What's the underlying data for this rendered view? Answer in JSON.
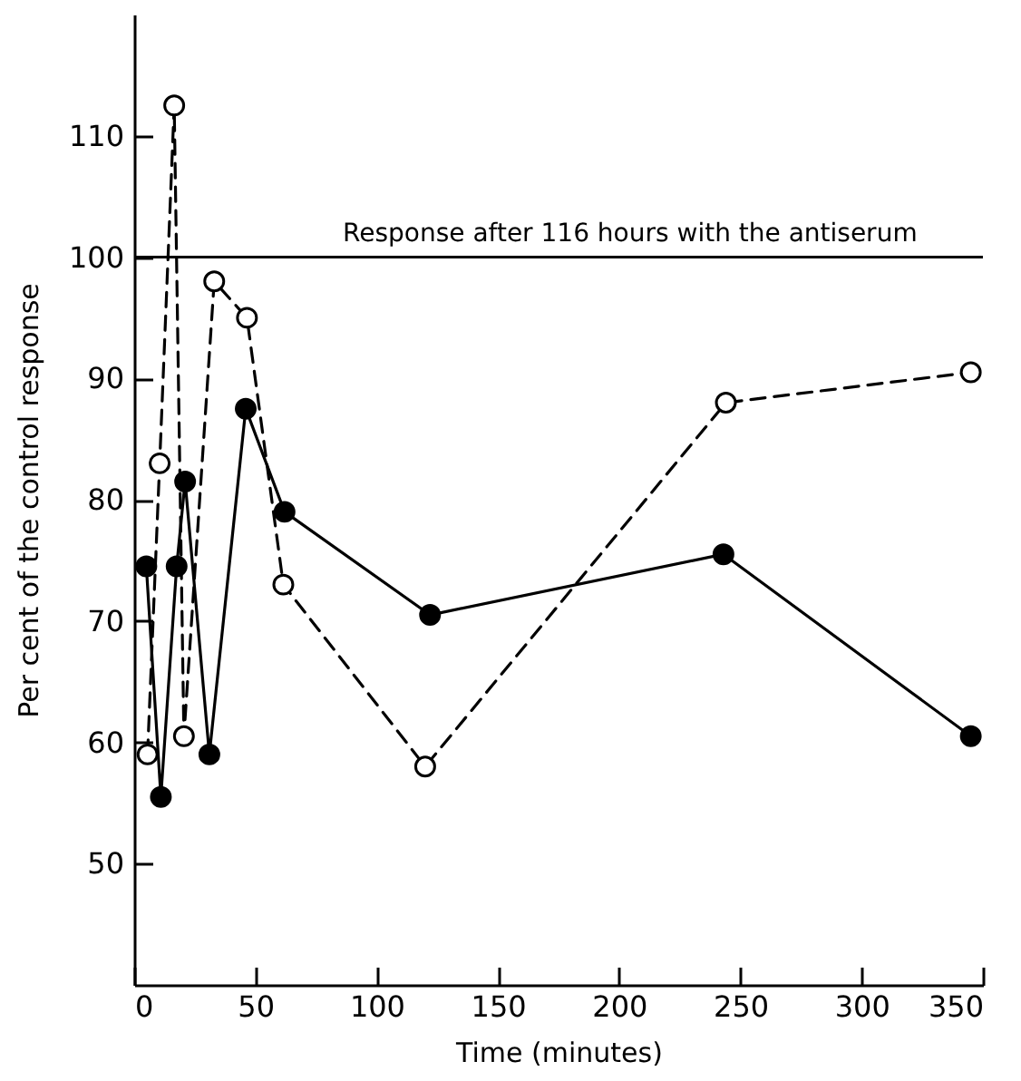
{
  "chart_data": {
    "type": "line",
    "xlabel": "Time (minutes)",
    "ylabel": "Per cent of the control response",
    "xlim": [
      0,
      350
    ],
    "ylim": [
      40,
      120
    ],
    "xticks": [
      0,
      50,
      100,
      150,
      200,
      250,
      300,
      350
    ],
    "yticks": [
      50,
      60,
      70,
      80,
      90,
      100,
      110
    ],
    "marker": "circle",
    "ref_lines": [
      {
        "axis": "y",
        "value": 100,
        "label": "Response after 116 hours with the antiserum",
        "color": "#000000"
      }
    ],
    "series": [
      {
        "color": "#000000",
        "line_style": "solid",
        "x": [
          5,
          11,
          17.5,
          21,
          31,
          46,
          62,
          122,
          243,
          345
        ],
        "values": [
          74.5,
          55.5,
          74.5,
          81.5,
          59,
          87.5,
          79,
          70.5,
          75.5,
          60.5
        ]
      },
      {
        "color": "#000000",
        "line_style": "dashed",
        "x": [
          5.5,
          10.5,
          16.5,
          20.5,
          33,
          46.5,
          61.5,
          120,
          244,
          345
        ],
        "values": [
          59,
          83,
          112.5,
          60.5,
          98,
          95,
          73,
          58,
          88,
          90.5
        ]
      }
    ]
  }
}
